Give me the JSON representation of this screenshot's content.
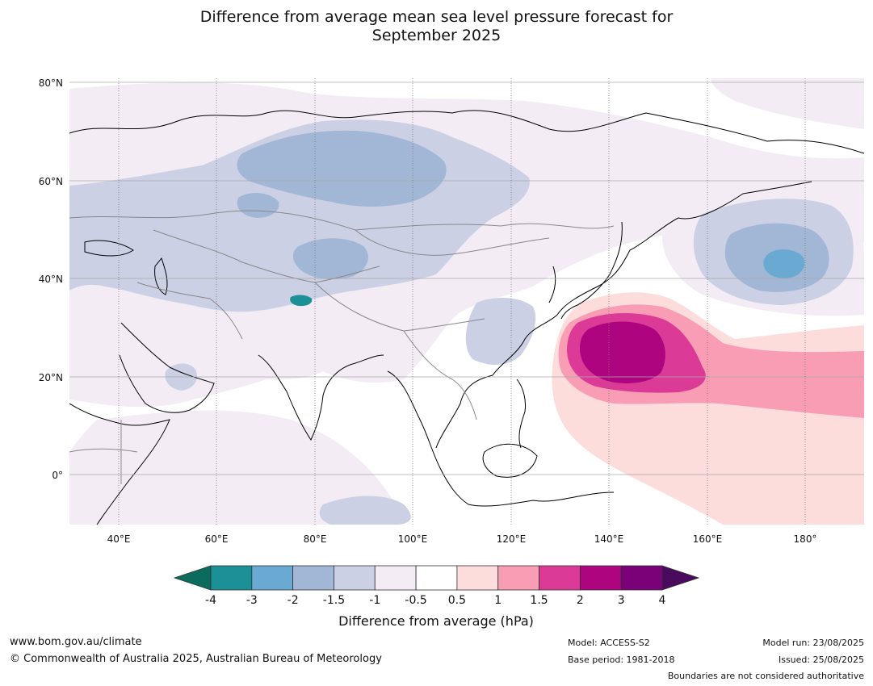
{
  "title": {
    "line1": "Difference from average mean sea level pressure forecast for",
    "line2": "September 2025"
  },
  "map": {
    "lon_labels": [
      "40°E",
      "60°E",
      "80°E",
      "100°E",
      "120°E",
      "140°E",
      "160°E",
      "180°"
    ],
    "lat_labels": [
      "80°N",
      "60°N",
      "40°N",
      "20°N",
      "0°"
    ]
  },
  "colorbar": {
    "title": "Difference from average (hPa)",
    "ticks": [
      "-4",
      "-3",
      "-2",
      "-1.5",
      "-1",
      "-0.5",
      "0.5",
      "1",
      "1.5",
      "2",
      "3",
      "4"
    ],
    "colors": {
      "under": "#0b6b5c",
      "bins": [
        "#1b9096",
        "#6aaad2",
        "#a2b6d6",
        "#ccd0e4",
        "#f3ecf5",
        "#ffffff",
        "#fddcdc",
        "#f89db4",
        "#dc3a97",
        "#ae0480",
        "#7a0178"
      ],
      "over": "#4a0a5e"
    }
  },
  "footer": {
    "website": "www.bom.gov.au/climate",
    "copyright": "© Commonwealth of Australia 2025, Australian Bureau of Meteorology",
    "model": "Model: ACCESS-S2",
    "base_period": "Base period: 1981-2018",
    "model_run": "Model run: 23/08/2025",
    "issued": "Issued: 25/08/2025",
    "disclaimer": "Boundaries are not considered authoritative"
  }
}
